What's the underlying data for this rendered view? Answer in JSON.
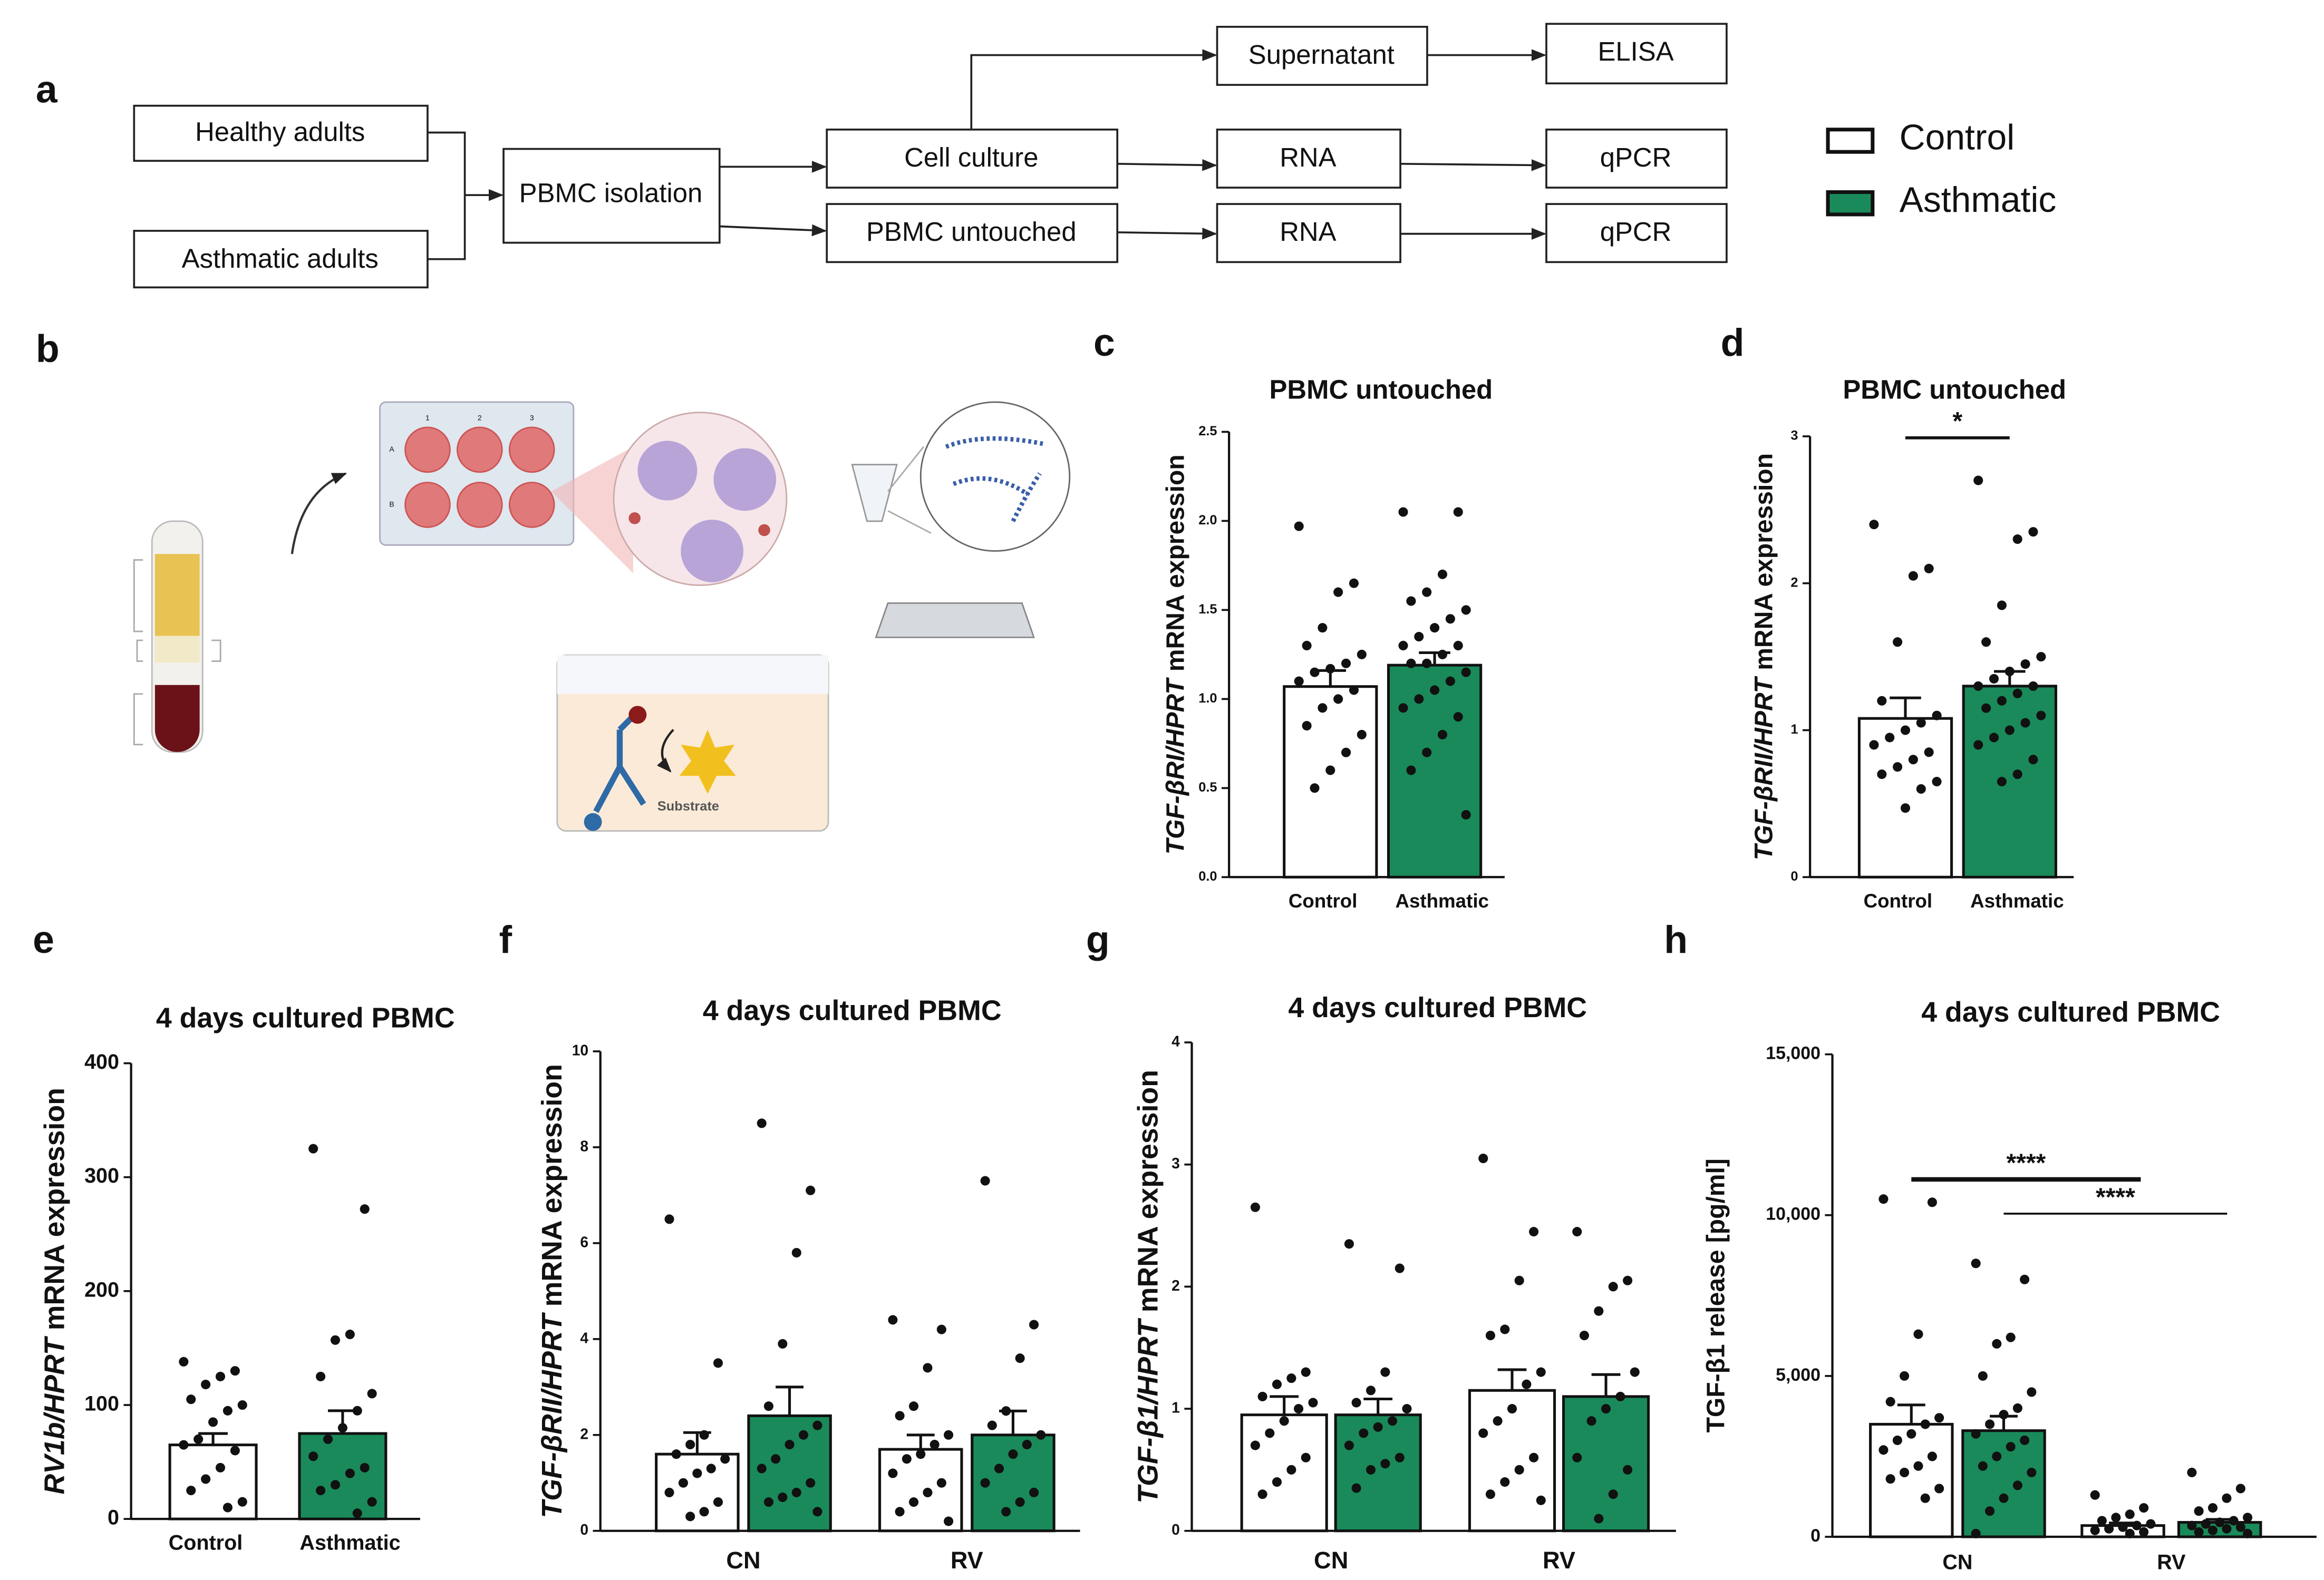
{
  "panel_labels": [
    "a",
    "b",
    "c",
    "d",
    "e",
    "f",
    "g",
    "h"
  ],
  "flow": {
    "nodes": [
      "Healthy adults",
      "Asthmatic adults",
      "PBMC isolation",
      "Cell culture",
      "PBMC untouched",
      "Supernatant",
      "ELISA",
      "RNA",
      "qPCR",
      "RNA",
      "qPCR"
    ]
  },
  "legend": [
    {
      "name": "Control",
      "color": "#ffffff"
    },
    {
      "name": "Asthmatic",
      "color": "#1a8a5a"
    }
  ],
  "illustration": {
    "plate_columns": [
      "1",
      "2",
      "3"
    ],
    "plate_rows": [
      "A",
      "B"
    ],
    "substrate": "Substrate"
  },
  "chart_data": [
    {
      "type": "bar",
      "title": "PBMC untouched",
      "ylabel": {
        "gene": "TGF-βRI/HPRT",
        "text": "mRNA expression"
      },
      "categories": [
        "Control",
        "Asthmatic"
      ],
      "colors": [
        "#ffffff",
        "#1a8a5a"
      ],
      "values": [
        1.07,
        1.19
      ],
      "errors": [
        0.09,
        0.07
      ],
      "points": [
        [
          1.97,
          1.65,
          1.6,
          1.4,
          1.3,
          1.25,
          1.2,
          1.17,
          1.15,
          1.1,
          1.05,
          1.0,
          0.95,
          0.85,
          0.8,
          0.7,
          0.6,
          0.5
        ],
        [
          2.05,
          2.05,
          1.7,
          1.6,
          1.55,
          1.5,
          1.45,
          1.4,
          1.35,
          1.3,
          1.3,
          1.25,
          1.2,
          1.2,
          1.15,
          1.1,
          1.05,
          1.0,
          0.95,
          0.9,
          0.8,
          0.7,
          0.6,
          0.35
        ]
      ],
      "ylim": [
        0,
        2.5
      ],
      "yticks": [
        {
          "value": 0,
          "label": "0.0"
        },
        {
          "value": 0.5,
          "label": "0.5"
        },
        {
          "value": 1,
          "label": "1.0"
        },
        {
          "value": 1.5,
          "label": "1.5"
        },
        {
          "value": 2,
          "label": "2.0"
        },
        {
          "value": 2.5,
          "label": "2.5"
        }
      ]
    },
    {
      "type": "bar",
      "title": "PBMC untouched",
      "ylabel": {
        "gene": "TGF-βRII/HPRT",
        "text": "mRNA expression"
      },
      "categories": [
        "Control",
        "Asthmatic"
      ],
      "colors": [
        "#ffffff",
        "#1a8a5a"
      ],
      "values": [
        1.08,
        1.3
      ],
      "errors": [
        0.14,
        0.1
      ],
      "points": [
        [
          2.4,
          2.1,
          2.05,
          1.6,
          1.2,
          1.1,
          1.05,
          1.0,
          0.95,
          0.9,
          0.85,
          0.8,
          0.75,
          0.7,
          0.65,
          0.6,
          0.47
        ],
        [
          2.7,
          2.35,
          2.3,
          1.85,
          1.6,
          1.5,
          1.45,
          1.4,
          1.35,
          1.3,
          1.3,
          1.25,
          1.2,
          1.15,
          1.1,
          1.05,
          1.0,
          0.95,
          0.9,
          0.8,
          0.7,
          0.65
        ]
      ],
      "ylim": [
        0,
        3
      ],
      "yticks": [
        0,
        1,
        2,
        3
      ],
      "annotations": [
        "*"
      ]
    },
    {
      "type": "bar",
      "title": "4 days cultured PBMC",
      "ylabel": {
        "gene": "RV1b/HPRT",
        "text": "mRNA expression"
      },
      "categories": [
        "Control",
        "Asthmatic"
      ],
      "colors": [
        "#ffffff",
        "#1a8a5a"
      ],
      "values": [
        65,
        75
      ],
      "errors": [
        10,
        20
      ],
      "points": [
        [
          138,
          130,
          125,
          118,
          105,
          100,
          95,
          85,
          70,
          65,
          60,
          45,
          35,
          25,
          15,
          10
        ],
        [
          325,
          272,
          162,
          157,
          125,
          110,
          95,
          80,
          70,
          55,
          45,
          40,
          30,
          25,
          15,
          5
        ]
      ],
      "ylim": [
        0,
        400
      ],
      "yticks": [
        0,
        100,
        200,
        300,
        400
      ]
    },
    {
      "type": "grouped_bar",
      "title": "4 days cultured PBMC",
      "ylabel": {
        "gene": "TGF-βRII/HPRT",
        "text": "mRNA expression"
      },
      "categories": [
        "CN",
        "RV"
      ],
      "series": [
        {
          "color": "#ffffff",
          "values": [
            1.6,
            1.7
          ],
          "errors": [
            0.45,
            0.3
          ],
          "points": [
            [
              6.5,
              3.5,
              2.0,
              1.8,
              1.6,
              1.5,
              1.3,
              1.2,
              1.0,
              0.8,
              0.6,
              0.4,
              0.3
            ],
            [
              4.4,
              4.2,
              3.4,
              2.6,
              2.4,
              2.0,
              1.8,
              1.6,
              1.5,
              1.2,
              1.0,
              0.8,
              0.6,
              0.4,
              0.2
            ]
          ]
        },
        {
          "color": "#1a8a5a",
          "values": [
            2.4,
            2.0
          ],
          "errors": [
            0.6,
            0.5
          ],
          "points": [
            [
              8.5,
              7.1,
              5.8,
              3.9,
              2.6,
              2.2,
              2.0,
              1.8,
              1.5,
              1.3,
              1.0,
              0.8,
              0.7,
              0.6,
              0.4
            ],
            [
              7.3,
              4.3,
              3.6,
              2.5,
              2.2,
              2.0,
              1.8,
              1.6,
              1.3,
              1.0,
              0.8,
              0.6,
              0.4
            ]
          ]
        }
      ],
      "ylim": [
        0,
        10
      ],
      "yticks": [
        0,
        2,
        4,
        6,
        8,
        10
      ]
    },
    {
      "type": "grouped_bar",
      "title": "4 days cultured PBMC",
      "ylabel": {
        "gene": "TGF-β1/HPRT",
        "text": "mRNA expression"
      },
      "categories": [
        "CN",
        "RV"
      ],
      "series": [
        {
          "color": "#ffffff",
          "values": [
            0.95,
            1.15
          ],
          "errors": [
            0.15,
            0.17
          ],
          "points": [
            [
              2.65,
              1.3,
              1.25,
              1.2,
              1.1,
              1.05,
              1.0,
              0.9,
              0.8,
              0.7,
              0.6,
              0.5,
              0.4,
              0.3
            ],
            [
              3.05,
              2.45,
              2.05,
              1.65,
              1.6,
              1.3,
              1.2,
              1.0,
              0.9,
              0.8,
              0.6,
              0.5,
              0.4,
              0.3,
              0.25
            ]
          ]
        },
        {
          "color": "#1a8a5a",
          "values": [
            0.95,
            1.1
          ],
          "errors": [
            0.13,
            0.18
          ],
          "points": [
            [
              2.35,
              2.15,
              1.3,
              1.15,
              1.05,
              1.0,
              0.9,
              0.85,
              0.8,
              0.7,
              0.6,
              0.55,
              0.5,
              0.35
            ],
            [
              2.45,
              2.05,
              2.0,
              1.8,
              1.6,
              1.3,
              1.1,
              1.0,
              0.9,
              0.6,
              0.5,
              0.3,
              0.1
            ]
          ]
        }
      ],
      "ylim": [
        0,
        4
      ],
      "yticks": [
        0,
        1,
        2,
        3,
        4
      ]
    },
    {
      "type": "grouped_bar",
      "title": "4 days cultured PBMC",
      "ylabel": "TGF-β1 release [pg/ml]",
      "categories": [
        "CN",
        "RV"
      ],
      "series": [
        {
          "color": "#ffffff",
          "values": [
            3500,
            350
          ],
          "errors": [
            600,
            80
          ],
          "points": [
            [
              10500,
              10400,
              6300,
              5000,
              4200,
              3700,
              3500,
              3200,
              3000,
              2700,
              2500,
              2200,
              2000,
              1800,
              1500,
              1200
            ],
            [
              1300,
              900,
              700,
              600,
              500,
              400,
              350,
              300,
              250,
              200,
              150,
              100
            ]
          ]
        },
        {
          "color": "#1a8a5a",
          "values": [
            3300,
            450
          ],
          "errors": [
            450,
            90
          ],
          "points": [
            [
              8500,
              8000,
              6200,
              6000,
              5000,
              4500,
              4000,
              3800,
              3500,
              3200,
              3000,
              2800,
              2500,
              2200,
              2000,
              1600,
              1200,
              800,
              100
            ],
            [
              2000,
              1500,
              1200,
              900,
              800,
              600,
              500,
              450,
              400,
              350,
              300,
              250,
              200,
              150,
              100
            ]
          ]
        }
      ],
      "ylim": [
        0,
        15000
      ],
      "yticks": [
        0,
        {
          "value": 5000,
          "label": "5,000"
        },
        {
          "value": 10000,
          "label": "10,000"
        },
        {
          "value": 15000,
          "label": "15,000"
        }
      ],
      "annotations": [
        "****",
        "****"
      ]
    }
  ]
}
